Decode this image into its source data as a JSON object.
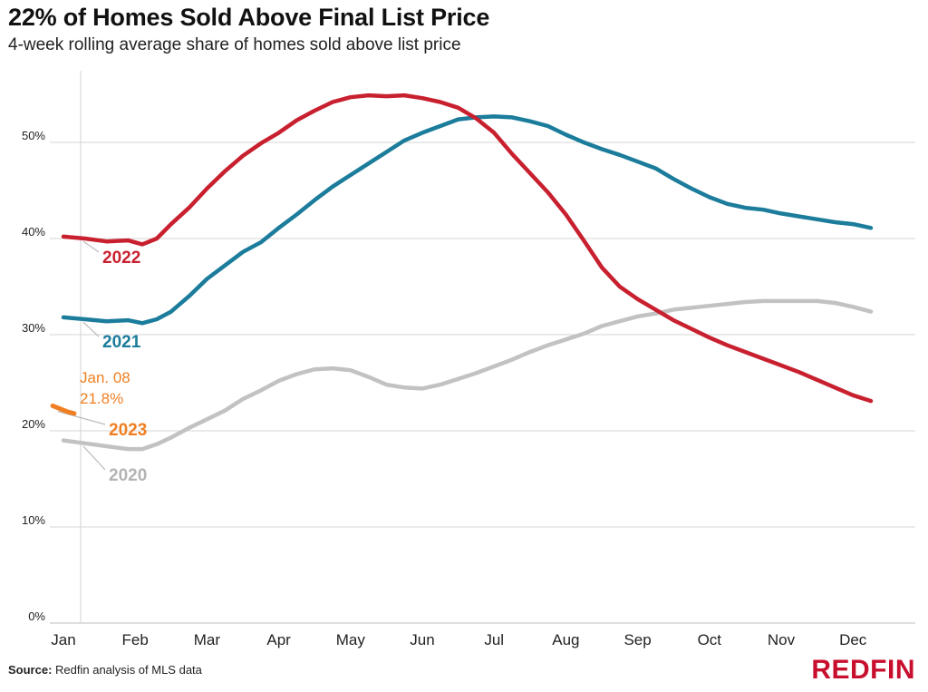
{
  "header": {
    "title": "22% of Homes Sold Above Final List Price",
    "subtitle": "4-week rolling average share of homes sold above list price"
  },
  "footer": {
    "source_label": "Source:",
    "source_text": "Redfin analysis of MLS data",
    "logo_text": "REDFIN"
  },
  "colors": {
    "2022": "#c8202f",
    "2021": "#1b7c9b",
    "2020": "#c2c2c2",
    "2023": "#f07f23",
    "brand": "#c8102e",
    "grid": "#d6d6d6"
  },
  "chart_data": {
    "type": "line",
    "title": "22% of Homes Sold Above Final List Price",
    "subtitle": "4-week rolling average share of homes sold above list price",
    "x_unit": "month",
    "x_ticks": [
      "Jan",
      "Feb",
      "Mar",
      "Apr",
      "May",
      "Jun",
      "Jul",
      "Aug",
      "Sep",
      "Oct",
      "Nov",
      "Dec"
    ],
    "y_ticks": [
      "0%",
      "10%",
      "20%",
      "30%",
      "40%",
      "50%"
    ],
    "ylim": [
      0,
      55
    ],
    "xlim": [
      0.85,
      12.3
    ],
    "grid": "horizontal",
    "series": [
      {
        "name": "2022",
        "x": [
          1.0,
          1.3,
          1.6,
          1.9,
          2.1,
          2.3,
          2.5,
          2.75,
          3.0,
          3.25,
          3.5,
          3.75,
          4.0,
          4.25,
          4.5,
          4.75,
          5.0,
          5.25,
          5.5,
          5.75,
          6.0,
          6.25,
          6.5,
          6.75,
          7.0,
          7.25,
          7.5,
          7.75,
          8.0,
          8.25,
          8.5,
          8.75,
          9.0,
          9.25,
          9.5,
          9.75,
          10.0,
          10.25,
          10.5,
          10.75,
          11.0,
          11.25,
          11.5,
          11.75,
          12.0,
          12.25
        ],
        "values": [
          40.2,
          40.0,
          39.7,
          39.8,
          39.4,
          40.0,
          41.5,
          43.2,
          45.2,
          47.0,
          48.6,
          49.9,
          51.0,
          52.3,
          53.3,
          54.2,
          54.7,
          54.9,
          54.8,
          54.9,
          54.6,
          54.2,
          53.6,
          52.5,
          51.0,
          48.8,
          46.8,
          44.8,
          42.5,
          39.8,
          37.0,
          35.0,
          33.7,
          32.6,
          31.5,
          30.6,
          29.7,
          28.9,
          28.2,
          27.5,
          26.8,
          26.1,
          25.3,
          24.5,
          23.7,
          23.1
        ],
        "label": "2022"
      },
      {
        "name": "2021",
        "x": [
          1.0,
          1.3,
          1.6,
          1.9,
          2.1,
          2.3,
          2.5,
          2.75,
          3.0,
          3.25,
          3.5,
          3.75,
          4.0,
          4.25,
          4.5,
          4.75,
          5.0,
          5.25,
          5.5,
          5.75,
          6.0,
          6.25,
          6.5,
          6.75,
          7.0,
          7.25,
          7.5,
          7.75,
          8.0,
          8.25,
          8.5,
          8.75,
          9.0,
          9.25,
          9.5,
          9.75,
          10.0,
          10.25,
          10.5,
          10.75,
          11.0,
          11.25,
          11.5,
          11.75,
          12.0,
          12.25
        ],
        "values": [
          31.8,
          31.6,
          31.4,
          31.5,
          31.2,
          31.6,
          32.4,
          34.0,
          35.8,
          37.2,
          38.6,
          39.6,
          41.1,
          42.5,
          44.0,
          45.4,
          46.6,
          47.8,
          49.0,
          50.2,
          51.0,
          51.7,
          52.4,
          52.6,
          52.7,
          52.6,
          52.2,
          51.7,
          50.8,
          50.0,
          49.3,
          48.7,
          48.0,
          47.3,
          46.2,
          45.2,
          44.3,
          43.6,
          43.2,
          43.0,
          42.6,
          42.3,
          42.0,
          41.7,
          41.5,
          41.1
        ],
        "label": "2021"
      },
      {
        "name": "2020",
        "x": [
          1.0,
          1.3,
          1.6,
          1.9,
          2.1,
          2.3,
          2.5,
          2.75,
          3.0,
          3.25,
          3.5,
          3.75,
          4.0,
          4.25,
          4.5,
          4.75,
          5.0,
          5.25,
          5.5,
          5.75,
          6.0,
          6.25,
          6.5,
          6.75,
          7.0,
          7.25,
          7.5,
          7.75,
          8.0,
          8.25,
          8.5,
          8.75,
          9.0,
          9.25,
          9.5,
          9.75,
          10.0,
          10.25,
          10.5,
          10.75,
          11.0,
          11.25,
          11.5,
          11.75,
          12.0,
          12.25
        ],
        "values": [
          19.0,
          18.7,
          18.4,
          18.1,
          18.1,
          18.6,
          19.3,
          20.3,
          21.2,
          22.1,
          23.3,
          24.2,
          25.2,
          25.9,
          26.4,
          26.5,
          26.3,
          25.6,
          24.8,
          24.5,
          24.4,
          24.8,
          25.4,
          26.0,
          26.7,
          27.4,
          28.2,
          28.9,
          29.5,
          30.1,
          30.9,
          31.4,
          31.9,
          32.2,
          32.6,
          32.8,
          33.0,
          33.2,
          33.4,
          33.5,
          33.5,
          33.5,
          33.5,
          33.3,
          32.9,
          32.4
        ],
        "label": "2020"
      },
      {
        "name": "2023",
        "x": [
          0.85,
          0.95,
          1.05,
          1.15
        ],
        "values": [
          22.6,
          22.3,
          22.0,
          21.8
        ],
        "label": "2023"
      }
    ],
    "annotations": [
      {
        "text": "Jan. 08",
        "series": "2023"
      },
      {
        "text": "21.8%",
        "series": "2023"
      }
    ]
  }
}
